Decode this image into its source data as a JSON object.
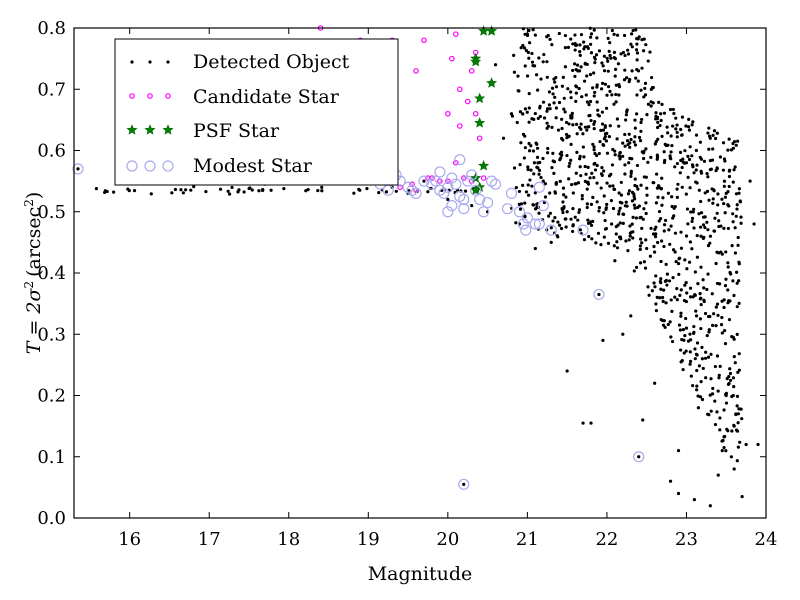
{
  "chart_data": {
    "type": "scatter",
    "xlabel": "Magnitude",
    "ylabel_prefix": "T = 2σ",
    "ylabel_unit": "(arcsec",
    "ylabel_suffix": ")",
    "ylabel_exp": "2",
    "xlim": [
      15.3,
      24.0
    ],
    "ylim": [
      0.0,
      0.8
    ],
    "xticks": [
      16,
      17,
      18,
      19,
      20,
      21,
      22,
      23,
      24
    ],
    "yticks": [
      0.0,
      0.1,
      0.2,
      0.3,
      0.4,
      0.5,
      0.6,
      0.7,
      0.8
    ],
    "legend": {
      "position": "top-left",
      "entries": [
        {
          "key": "detected",
          "label": "Detected Object"
        },
        {
          "key": "candidate",
          "label": "Candidate Star"
        },
        {
          "key": "psf",
          "label": "PSF Star"
        },
        {
          "key": "modest",
          "label": "Modest Star"
        }
      ]
    },
    "colors": {
      "detected": "#000000",
      "candidate": "#ff00ff",
      "psf": "#008000",
      "psf_edge": "#006400",
      "modest": "#aaaaee"
    },
    "series": {
      "detected_extra": [
        [
          22.4,
          0.1
        ],
        [
          20.2,
          0.055
        ],
        [
          21.9,
          0.365
        ],
        [
          21.5,
          0.24
        ],
        [
          21.7,
          0.155
        ],
        [
          21.8,
          0.155
        ],
        [
          22.45,
          0.16
        ],
        [
          22.8,
          0.06
        ],
        [
          22.9,
          0.04
        ],
        [
          23.1,
          0.03
        ],
        [
          23.3,
          0.02
        ],
        [
          23.7,
          0.035
        ],
        [
          23.9,
          0.12
        ],
        [
          23.85,
          0.48
        ],
        [
          23.6,
          0.15
        ],
        [
          23.5,
          0.2
        ],
        [
          23.2,
          0.26
        ],
        [
          23.0,
          0.31
        ],
        [
          22.7,
          0.36
        ],
        [
          22.5,
          0.44
        ],
        [
          22.3,
          0.33
        ],
        [
          22.1,
          0.42
        ],
        [
          23.75,
          0.12
        ],
        [
          23.6,
          0.08
        ],
        [
          23.4,
          0.07
        ],
        [
          22.6,
          0.22
        ],
        [
          22.9,
          0.11
        ],
        [
          23.15,
          0.18
        ],
        [
          23.45,
          0.11
        ],
        [
          21.95,
          0.29
        ],
        [
          22.2,
          0.3
        ],
        [
          23.8,
          0.55
        ],
        [
          23.5,
          0.53
        ],
        [
          23.3,
          0.62
        ],
        [
          23.0,
          0.58
        ],
        [
          21.3,
          0.45
        ],
        [
          21.1,
          0.44
        ],
        [
          20.9,
          0.48
        ],
        [
          21.5,
          0.5
        ],
        [
          21.2,
          0.55
        ],
        [
          20.7,
          0.62
        ],
        [
          20.8,
          0.66
        ],
        [
          20.6,
          0.74
        ],
        [
          21.0,
          0.79
        ],
        [
          19.2,
          0.55
        ],
        [
          19.3,
          0.54
        ],
        [
          19.5,
          0.53
        ],
        [
          19.7,
          0.55
        ],
        [
          20.0,
          0.52
        ],
        [
          20.3,
          0.51
        ],
        [
          20.5,
          0.5
        ],
        [
          18.8,
          0.58
        ],
        [
          18.3,
          0.58
        ],
        [
          17.7,
          0.545
        ],
        [
          18.0,
          0.55
        ],
        [
          15.35,
          0.57
        ],
        [
          15.9,
          0.565
        ],
        [
          16.5,
          0.56
        ],
        [
          17.2,
          0.555
        ],
        [
          19.05,
          0.6
        ],
        [
          19.1,
          0.66
        ],
        [
          18.6,
          0.55
        ]
      ],
      "candidate": [
        [
          18.4,
          0.8
        ],
        [
          18.9,
          0.78
        ],
        [
          19.3,
          0.78
        ],
        [
          19.6,
          0.73
        ],
        [
          19.7,
          0.78
        ],
        [
          20.05,
          0.75
        ],
        [
          20.3,
          0.73
        ],
        [
          20.15,
          0.7
        ],
        [
          20.25,
          0.68
        ],
        [
          20.35,
          0.66
        ],
        [
          20.4,
          0.62
        ],
        [
          20.1,
          0.58
        ],
        [
          20.2,
          0.555
        ],
        [
          19.9,
          0.55
        ],
        [
          19.8,
          0.555
        ],
        [
          19.75,
          0.555
        ],
        [
          19.55,
          0.545
        ],
        [
          19.4,
          0.54
        ],
        [
          19.6,
          0.535
        ],
        [
          20.0,
          0.55
        ],
        [
          20.3,
          0.55
        ],
        [
          20.45,
          0.555
        ],
        [
          20.0,
          0.66
        ],
        [
          20.15,
          0.64
        ],
        [
          20.35,
          0.76
        ],
        [
          20.1,
          0.79
        ]
      ],
      "psf": [
        [
          20.45,
          0.795
        ],
        [
          20.55,
          0.795
        ],
        [
          20.35,
          0.75
        ],
        [
          20.35,
          0.745
        ],
        [
          20.55,
          0.71
        ],
        [
          20.4,
          0.685
        ],
        [
          20.4,
          0.645
        ],
        [
          20.45,
          0.575
        ],
        [
          20.35,
          0.555
        ],
        [
          20.4,
          0.54
        ],
        [
          20.35,
          0.535
        ]
      ],
      "modest": [
        [
          15.35,
          0.57
        ],
        [
          19.15,
          0.545
        ],
        [
          19.25,
          0.535
        ],
        [
          19.3,
          0.57
        ],
        [
          19.35,
          0.56
        ],
        [
          19.4,
          0.55
        ],
        [
          19.5,
          0.54
        ],
        [
          19.55,
          0.535
        ],
        [
          19.6,
          0.53
        ],
        [
          19.7,
          0.55
        ],
        [
          19.8,
          0.545
        ],
        [
          19.85,
          0.55
        ],
        [
          19.9,
          0.535
        ],
        [
          19.95,
          0.53
        ],
        [
          20.0,
          0.54
        ],
        [
          20.05,
          0.555
        ],
        [
          20.1,
          0.545
        ],
        [
          20.15,
          0.525
        ],
        [
          20.2,
          0.52
        ],
        [
          20.25,
          0.55
        ],
        [
          20.3,
          0.56
        ],
        [
          20.35,
          0.535
        ],
        [
          20.4,
          0.52
        ],
        [
          20.45,
          0.5
        ],
        [
          20.5,
          0.515
        ],
        [
          20.55,
          0.55
        ],
        [
          20.6,
          0.545
        ],
        [
          20.75,
          0.505
        ],
        [
          20.8,
          0.53
        ],
        [
          20.9,
          0.5
        ],
        [
          20.95,
          0.48
        ],
        [
          20.98,
          0.47
        ],
        [
          21.0,
          0.49
        ],
        [
          21.1,
          0.48
        ],
        [
          21.15,
          0.48
        ],
        [
          21.2,
          0.51
        ],
        [
          21.3,
          0.47
        ],
        [
          21.15,
          0.54
        ],
        [
          21.7,
          0.47
        ],
        [
          21.9,
          0.365
        ],
        [
          22.4,
          0.1
        ],
        [
          20.2,
          0.055
        ],
        [
          20.05,
          0.51
        ],
        [
          20.2,
          0.505
        ],
        [
          20.0,
          0.5
        ],
        [
          20.15,
          0.585
        ],
        [
          19.9,
          0.565
        ]
      ]
    }
  }
}
